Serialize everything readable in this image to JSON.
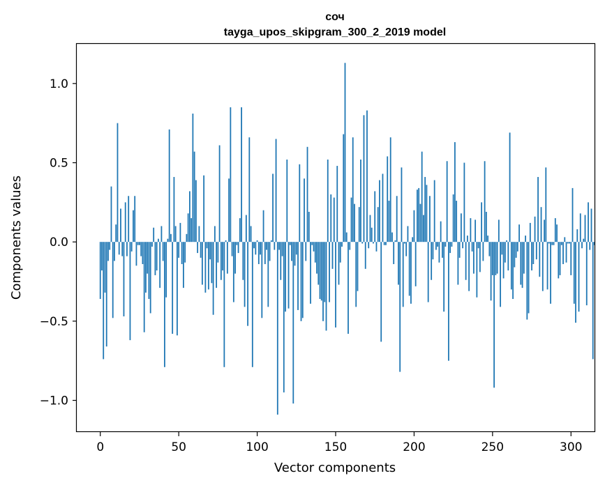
{
  "chart_data": {
    "type": "bar",
    "title_line1": "соч",
    "title_line2": "tayga_upos_skipgram_300_2_2019 model",
    "xlabel": "Vector components",
    "ylabel": "Components values",
    "xlim": [
      -15,
      315
    ],
    "ylim": [
      -1.2,
      1.25
    ],
    "xticks": [
      0,
      50,
      100,
      150,
      200,
      250,
      300
    ],
    "xtick_labels": [
      "0",
      "50",
      "100",
      "150",
      "200",
      "250",
      "300"
    ],
    "yticks": [
      -1.0,
      -0.5,
      0.0,
      0.5,
      1.0
    ],
    "ytick_labels": [
      "−1.0",
      "−0.5",
      "0.0",
      "0.5",
      "1.0"
    ],
    "bar_color": "#1f77b4",
    "values": [
      -0.36,
      -0.18,
      -0.74,
      -0.32,
      -0.66,
      -0.12,
      -0.05,
      0.35,
      -0.48,
      -0.12,
      0.11,
      0.75,
      -0.08,
      0.21,
      -0.09,
      -0.47,
      0.25,
      -0.09,
      0.29,
      -0.62,
      -0.06,
      0.2,
      0.29,
      -0.15,
      -0.02,
      -0.02,
      -0.09,
      -0.14,
      -0.57,
      -0.32,
      -0.2,
      -0.36,
      -0.45,
      -0.03,
      0.09,
      -0.21,
      -0.18,
      0.02,
      -0.29,
      0.1,
      -0.12,
      -0.79,
      -0.35,
      0.02,
      0.71,
      0.05,
      -0.58,
      0.41,
      0.1,
      -0.59,
      -0.1,
      0.12,
      -0.14,
      -0.29,
      -0.13,
      0.05,
      0.18,
      0.32,
      0.15,
      0.81,
      0.57,
      0.39,
      -0.07,
      0.1,
      -0.1,
      -0.27,
      0.42,
      -0.32,
      -0.04,
      -0.3,
      -0.11,
      -0.26,
      -0.46,
      0.1,
      -0.29,
      -0.13,
      0.61,
      -0.24,
      -0.18,
      -0.79,
      0.01,
      -0.2,
      0.4,
      0.85,
      -0.09,
      -0.38,
      -0.2,
      -0.02,
      -0.07,
      0.15,
      0.85,
      -0.24,
      -0.41,
      0.17,
      -0.53,
      0.66,
      0.1,
      -0.79,
      -0.04,
      -0.08,
      0.01,
      -0.14,
      -0.08,
      -0.48,
      0.2,
      -0.14,
      -0.05,
      -0.41,
      -0.12,
      0.01,
      0.43,
      -0.05,
      0.65,
      -1.09,
      -0.05,
      -0.24,
      -0.09,
      -0.95,
      -0.44,
      0.52,
      -0.42,
      -0.02,
      -0.12,
      -1.02,
      -0.15,
      -0.08,
      -0.43,
      0.49,
      -0.5,
      -0.48,
      0.4,
      -0.12,
      0.6,
      0.19,
      -0.39,
      -0.02,
      -0.06,
      -0.13,
      -0.2,
      -0.27,
      -0.36,
      -0.37,
      -0.5,
      -0.38,
      -0.56,
      0.52,
      -0.38,
      0.3,
      -0.17,
      0.28,
      -0.54,
      0.48,
      -0.27,
      -0.13,
      -0.03,
      0.68,
      1.13,
      0.06,
      -0.58,
      -0.05,
      0.28,
      0.66,
      0.24,
      -0.41,
      -0.31,
      0.22,
      0.52,
      -0.01,
      0.8,
      -0.17,
      0.83,
      -0.04,
      0.17,
      0.09,
      -0.01,
      0.32,
      -0.06,
      0.22,
      0.39,
      -0.63,
      0.43,
      -0.02,
      -0.02,
      0.54,
      0.26,
      0.66,
      0.06,
      -0.14,
      0.01,
      0.29,
      -0.27,
      -0.82,
      0.47,
      -0.41,
      -0.01,
      -0.09,
      0.1,
      -0.34,
      -0.39,
      0.03,
      0.2,
      -0.28,
      0.33,
      0.34,
      0.24,
      0.57,
      0.17,
      0.41,
      0.36,
      -0.38,
      0.29,
      -0.24,
      -0.11,
      0.39,
      -0.05,
      -0.03,
      -0.13,
      0.13,
      -0.1,
      -0.44,
      -0.03,
      0.51,
      -0.75,
      -0.07,
      -0.03,
      0.3,
      0.63,
      0.26,
      -0.27,
      -0.1,
      0.18,
      -0.04,
      0.5,
      -0.24,
      0.04,
      -0.31,
      0.15,
      -0.06,
      -0.2,
      0.14,
      -0.35,
      -0.04,
      -0.19,
      0.25,
      -0.12,
      0.51,
      0.19,
      0.04,
      -0.09,
      -0.37,
      -0.21,
      -0.92,
      -0.21,
      -0.2,
      0.14,
      -0.41,
      -0.08,
      -0.23,
      -0.13,
      0.01,
      -0.18,
      0.69,
      -0.3,
      -0.36,
      -0.16,
      -0.1,
      -0.06,
      0.11,
      -0.27,
      -0.29,
      -0.2,
      0.04,
      -0.49,
      -0.45,
      0.12,
      -0.18,
      -0.14,
      0.16,
      -0.11,
      0.41,
      -0.22,
      0.22,
      -0.31,
      0.14,
      0.47,
      -0.3,
      -0.01,
      -0.39,
      -0.02,
      -0.02,
      0.15,
      0.11,
      -0.23,
      -0.21,
      -0.02,
      -0.14,
      0.03,
      -0.13,
      -0.01,
      -0.01,
      -0.21,
      0.34,
      -0.39,
      -0.51,
      0.08,
      -0.44,
      0.18,
      -0.04,
      0.02,
      0.17,
      -0.4,
      0.25,
      -0.05,
      0.21,
      -0.74,
      -0.02
    ]
  }
}
